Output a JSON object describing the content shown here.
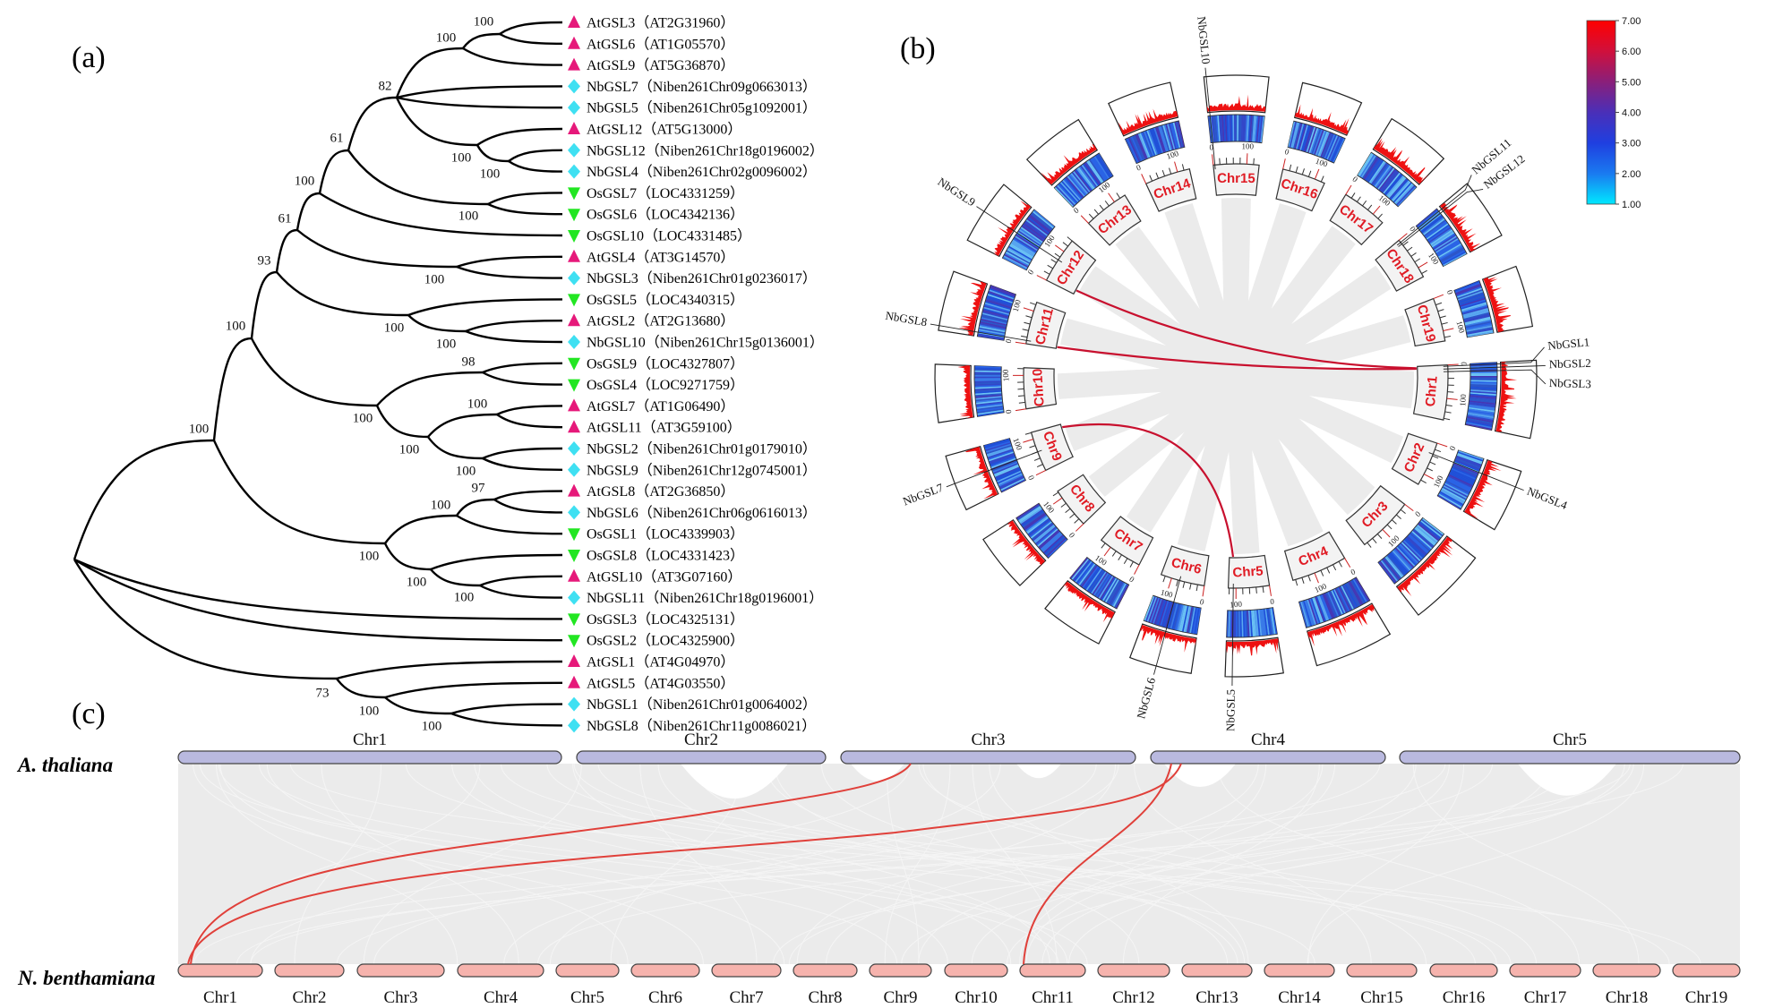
{
  "panel_labels": {
    "a": "(a)",
    "b": "(b)",
    "c": "(c)"
  },
  "species_markers": {
    "At": {
      "shape": "triangle-up",
      "color": "#e6197a"
    },
    "Nb": {
      "shape": "diamond",
      "color": "#3fe0f2"
    },
    "Os": {
      "shape": "triangle-down",
      "color": "#22e622"
    }
  },
  "tree": {
    "leaves": [
      {
        "label": "AtGSL3（AT2G31960）",
        "sp": "At"
      },
      {
        "label": "AtGSL6（AT1G05570）",
        "sp": "At"
      },
      {
        "label": "AtGSL9（AT5G36870）",
        "sp": "At"
      },
      {
        "label": "NbGSL7（Niben261Chr09g0663013）",
        "sp": "Nb"
      },
      {
        "label": "NbGSL5（Niben261Chr05g1092001）",
        "sp": "Nb"
      },
      {
        "label": "AtGSL12（AT5G13000）",
        "sp": "At"
      },
      {
        "label": "NbGSL12（Niben261Chr18g0196002）",
        "sp": "Nb"
      },
      {
        "label": "NbGSL4（Niben261Chr02g0096002）",
        "sp": "Nb"
      },
      {
        "label": "OsGSL7（LOC4331259）",
        "sp": "Os"
      },
      {
        "label": "OsGSL6（LOC4342136）",
        "sp": "Os"
      },
      {
        "label": "OsGSL10（LOC4331485）",
        "sp": "Os"
      },
      {
        "label": "AtGSL4（AT3G14570）",
        "sp": "At"
      },
      {
        "label": "NbGSL3（Niben261Chr01g0236017）",
        "sp": "Nb"
      },
      {
        "label": "OsGSL5（LOC4340315）",
        "sp": "Os"
      },
      {
        "label": "AtGSL2（AT2G13680）",
        "sp": "At"
      },
      {
        "label": "NbGSL10（Niben261Chr15g0136001）",
        "sp": "Nb"
      },
      {
        "label": "OsGSL9（LOC4327807）",
        "sp": "Os"
      },
      {
        "label": "OsGSL4（LOC9271759）",
        "sp": "Os"
      },
      {
        "label": "AtGSL7（AT1G06490）",
        "sp": "At"
      },
      {
        "label": "AtGSL11（AT3G59100）",
        "sp": "At"
      },
      {
        "label": "NbGSL2（Niben261Chr01g0179010）",
        "sp": "Nb"
      },
      {
        "label": "NbGSL9（Niben261Chr12g0745001）",
        "sp": "Nb"
      },
      {
        "label": "AtGSL8（AT2G36850）",
        "sp": "At"
      },
      {
        "label": "NbGSL6（Niben261Chr06g0616013）",
        "sp": "Nb"
      },
      {
        "label": "OsGSL1（LOC4339903）",
        "sp": "Os"
      },
      {
        "label": "OsGSL8（LOC4331423）",
        "sp": "Os"
      },
      {
        "label": "AtGSL10（AT3G07160）",
        "sp": "At"
      },
      {
        "label": "NbGSL11（Niben261Chr18g0196001）",
        "sp": "Nb"
      },
      {
        "label": "OsGSL3（LOC4325131）",
        "sp": "Os"
      },
      {
        "label": "OsGSL2（LOC4325900）",
        "sp": "Os"
      },
      {
        "label": "AtGSL1（AT4G04970）",
        "sp": "At"
      },
      {
        "label": "AtGSL5（AT4G03550）",
        "sp": "At"
      },
      {
        "label": "NbGSL1（Niben261Chr01g0064002）",
        "sp": "Nb"
      },
      {
        "label": "NbGSL8（Niben261Chr11g0086021）",
        "sp": "Nb"
      }
    ],
    "nodes": [
      {
        "id": "n1",
        "children": [
          "L0",
          "L1"
        ],
        "bootstrap": "100"
      },
      {
        "id": "n2",
        "children": [
          "n1",
          "L2"
        ],
        "bootstrap": "100"
      },
      {
        "id": "n3",
        "children": [
          "L6",
          "L7"
        ],
        "bootstrap": "100"
      },
      {
        "id": "n4",
        "children": [
          "L5",
          "n3"
        ],
        "bootstrap": "100"
      },
      {
        "id": "n5",
        "children": [
          "n2",
          "L3",
          "L4",
          "n4"
        ],
        "bootstrap": "82"
      },
      {
        "id": "n6",
        "children": [
          "L8",
          "L9"
        ],
        "bootstrap": "100"
      },
      {
        "id": "n7",
        "children": [
          "n5",
          "n6"
        ],
        "bootstrap": "61"
      },
      {
        "id": "n8",
        "children": [
          "n7",
          "L10"
        ],
        "bootstrap": "100"
      },
      {
        "id": "n9",
        "children": [
          "L11",
          "L12"
        ],
        "bootstrap": "100"
      },
      {
        "id": "n10",
        "children": [
          "n8",
          "n9"
        ],
        "bootstrap": "61"
      },
      {
        "id": "n11",
        "children": [
          "L14",
          "L15"
        ],
        "bootstrap": "100"
      },
      {
        "id": "n12",
        "children": [
          "L13",
          "n11"
        ],
        "bootstrap": "100"
      },
      {
        "id": "n13",
        "children": [
          "n10",
          "n12"
        ],
        "bootstrap": "93"
      },
      {
        "id": "n14",
        "children": [
          "L16",
          "L17"
        ],
        "bootstrap": "98"
      },
      {
        "id": "n15",
        "children": [
          "L18",
          "L19"
        ],
        "bootstrap": "100"
      },
      {
        "id": "n16",
        "children": [
          "L20",
          "L21"
        ],
        "bootstrap": "100"
      },
      {
        "id": "n17",
        "children": [
          "n15",
          "n16"
        ],
        "bootstrap": "100"
      },
      {
        "id": "n18",
        "children": [
          "n14",
          "n17"
        ],
        "bootstrap": "100"
      },
      {
        "id": "n19",
        "children": [
          "n13",
          "n18"
        ],
        "bootstrap": "100"
      },
      {
        "id": "n20",
        "children": [
          "L22",
          "L23"
        ],
        "bootstrap": "97"
      },
      {
        "id": "n21",
        "children": [
          "n20",
          "L24"
        ],
        "bootstrap": "100"
      },
      {
        "id": "n22",
        "children": [
          "L26",
          "L27"
        ],
        "bootstrap": "100"
      },
      {
        "id": "n23",
        "children": [
          "L25",
          "n22"
        ],
        "bootstrap": "100"
      },
      {
        "id": "n24",
        "children": [
          "n21",
          "n23"
        ],
        "bootstrap": "100"
      },
      {
        "id": "n25",
        "children": [
          "n19",
          "n24"
        ],
        "bootstrap": "100"
      },
      {
        "id": "n26",
        "children": [
          "L32",
          "L33"
        ],
        "bootstrap": "100"
      },
      {
        "id": "n27",
        "children": [
          "L31",
          "n26"
        ],
        "bootstrap": "100"
      },
      {
        "id": "n28",
        "children": [
          "L30",
          "n27"
        ],
        "bootstrap": "73"
      },
      {
        "id": "root",
        "children": [
          "n25",
          "L28",
          "L29",
          "n28"
        ],
        "bootstrap": ""
      }
    ]
  },
  "circos": {
    "chromosomes": [
      {
        "name": "Chr1",
        "length_mb": 165
      },
      {
        "name": "Chr2",
        "length_mb": 135
      },
      {
        "name": "Chr3",
        "length_mb": 170
      },
      {
        "name": "Chr4",
        "length_mb": 168
      },
      {
        "name": "Chr5",
        "length_mb": 123
      },
      {
        "name": "Chr6",
        "length_mb": 133
      },
      {
        "name": "Chr7",
        "length_mb": 135
      },
      {
        "name": "Chr8",
        "length_mb": 124
      },
      {
        "name": "Chr9",
        "length_mb": 121
      },
      {
        "name": "Chr10",
        "length_mb": 123
      },
      {
        "name": "Chr11",
        "length_mb": 128
      },
      {
        "name": "Chr12",
        "length_mb": 140
      },
      {
        "name": "Chr13",
        "length_mb": 137
      },
      {
        "name": "Chr14",
        "length_mb": 137
      },
      {
        "name": "Chr15",
        "length_mb": 137
      },
      {
        "name": "Chr16",
        "length_mb": 131
      },
      {
        "name": "Chr17",
        "length_mb": 138
      },
      {
        "name": "Chr18",
        "length_mb": 131
      },
      {
        "name": "Chr19",
        "length_mb": 131
      }
    ],
    "tick_labels": [
      "0",
      "100"
    ],
    "genes": [
      {
        "name": "NbGSL1",
        "chr": 0,
        "pos_mb": 4
      },
      {
        "name": "NbGSL2",
        "chr": 0,
        "pos_mb": 12
      },
      {
        "name": "NbGSL3",
        "chr": 0,
        "pos_mb": 20
      },
      {
        "name": "NbGSL4",
        "chr": 1,
        "pos_mb": 35
      },
      {
        "name": "NbGSL5",
        "chr": 4,
        "pos_mb": 108
      },
      {
        "name": "NbGSL6",
        "chr": 5,
        "pos_mb": 75
      },
      {
        "name": "NbGSL7",
        "chr": 8,
        "pos_mb": 60
      },
      {
        "name": "NbGSL8",
        "chr": 10,
        "pos_mb": 10
      },
      {
        "name": "NbGSL9",
        "chr": 11,
        "pos_mb": 70
      },
      {
        "name": "NbGSL10",
        "chr": 14,
        "pos_mb": 5
      },
      {
        "name": "NbGSL11",
        "chr": 17,
        "pos_mb": 8
      },
      {
        "name": "NbGSL12",
        "chr": 17,
        "pos_mb": 14
      }
    ],
    "links": [
      {
        "from": {
          "chr": 11,
          "pos_mb": 15
        },
        "to": {
          "chr": 0,
          "pos_mb": 6
        }
      },
      {
        "from": {
          "chr": 10,
          "pos_mb": 5
        },
        "to": {
          "chr": 0,
          "pos_mb": 8
        }
      },
      {
        "from": {
          "chr": 8,
          "pos_mb": 110
        },
        "to": {
          "chr": 4,
          "pos_mb": 110
        }
      }
    ],
    "link_color": "#c8102e",
    "legend": {
      "ticks": [
        "7.00",
        "6.00",
        "5.00",
        "4.00",
        "3.00",
        "2.00",
        "1.00"
      ],
      "colors": [
        "#ff0000",
        "#d0103c",
        "#8a1f7a",
        "#4a2fb8",
        "#1f3fe0",
        "#1a7af0",
        "#00e8ff"
      ]
    }
  },
  "synteny": {
    "top_species": "A. thaliana",
    "bottom_species": "N. benthamiana",
    "top_color": "#b9b9df",
    "bottom_color": "#f6b3ad",
    "top_chromosomes": [
      {
        "name": "Chr1",
        "length_mb": 30.4
      },
      {
        "name": "Chr2",
        "length_mb": 19.7
      },
      {
        "name": "Chr3",
        "length_mb": 23.5
      },
      {
        "name": "Chr4",
        "length_mb": 18.6
      },
      {
        "name": "Chr5",
        "length_mb": 27.0
      }
    ],
    "bottom_chromosomes": [
      "Chr1",
      "Chr2",
      "Chr3",
      "Chr4",
      "Chr5",
      "Chr6",
      "Chr7",
      "Chr8",
      "Chr9",
      "Chr10",
      "Chr11",
      "Chr12",
      "Chr13",
      "Chr14",
      "Chr15",
      "Chr16",
      "Chr17",
      "Chr18",
      "Chr19"
    ],
    "links": [
      {
        "top": "Chr3",
        "bottom": "Chr1"
      },
      {
        "top": "Chr4",
        "bottom": "Chr1"
      },
      {
        "top": "Chr4",
        "bottom": "Chr11"
      }
    ],
    "link_color": "#e0403a"
  }
}
